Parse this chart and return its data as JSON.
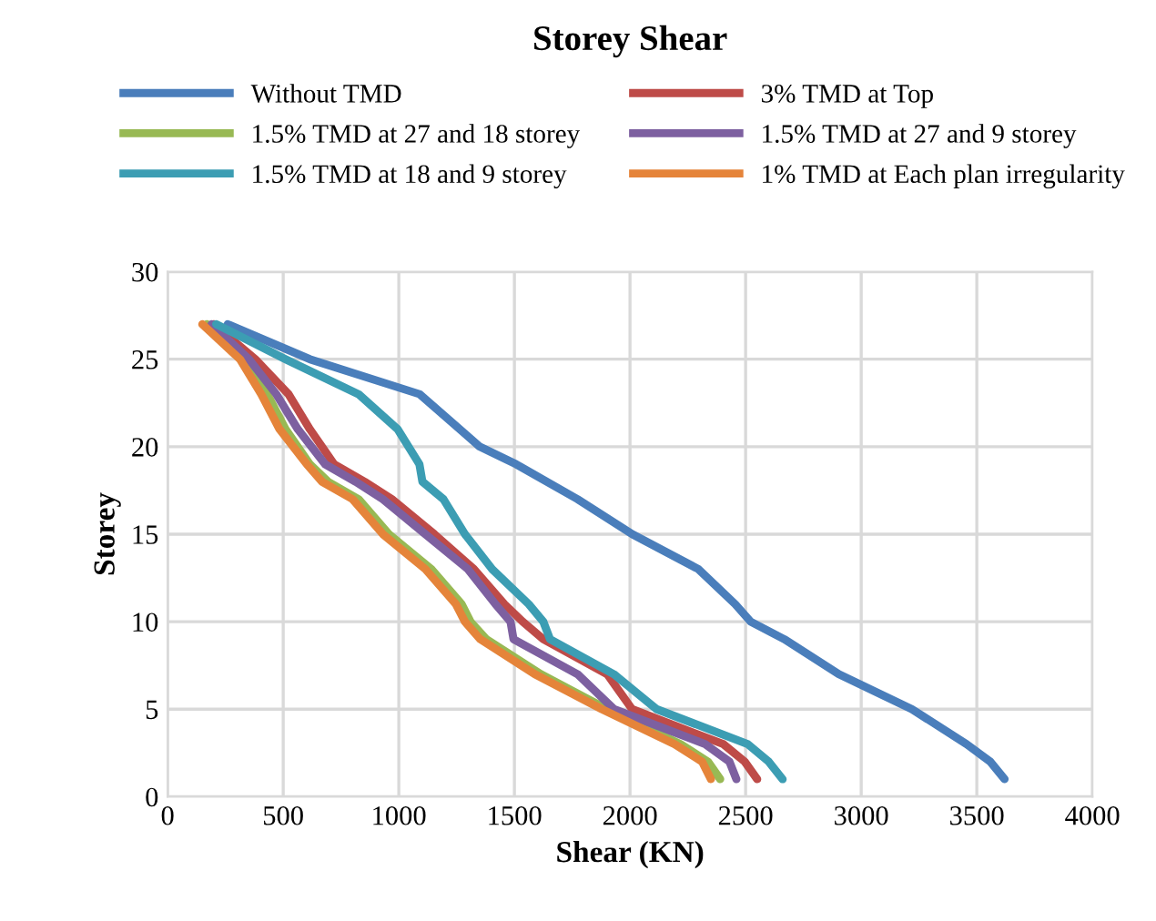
{
  "chart_data": {
    "type": "line",
    "title": "Storey Shear",
    "xlabel": "Shear (KN)",
    "ylabel": "Storey",
    "xlim": [
      0,
      4000
    ],
    "xticks": [
      0,
      500,
      1000,
      1500,
      2000,
      2500,
      3000,
      3500,
      4000
    ],
    "ylim": [
      0,
      30
    ],
    "yticks": [
      0,
      5,
      10,
      15,
      20,
      25,
      30
    ],
    "grid": true,
    "legend": "top",
    "marker": "none",
    "line_style": "solid",
    "series": [
      {
        "name": "Without TMD",
        "color": "#4a7ebb",
        "x": [
          260,
          615,
          1090,
          1350,
          1507,
          1773,
          2010,
          2296,
          2455,
          2522,
          2667,
          2903,
          3219,
          3456,
          3558,
          3620
        ],
        "values": [
          27,
          25,
          23,
          20,
          19,
          17,
          15,
          13,
          11,
          10,
          9,
          7,
          5,
          3,
          2,
          1
        ]
      },
      {
        "name": "3% TMD at Top",
        "color": "#be4b48",
        "x": [
          200,
          379,
          523,
          615,
          720,
          852,
          970,
          1154,
          1325,
          1457,
          1536,
          1625,
          1901,
          2009,
          2404,
          2496,
          2550
        ],
        "values": [
          27,
          25,
          23,
          21,
          19,
          18,
          17,
          15,
          13,
          11,
          10,
          9,
          7,
          5,
          3,
          2,
          1
        ]
      },
      {
        "name": "1.5% TMD at 27 and 18 storey",
        "color": "#98b954",
        "x": [
          170,
          326,
          431,
          510,
          615,
          694,
          826,
          957,
          1141,
          1272,
          1310,
          1378,
          1614,
          1901,
          2219,
          2337,
          2390
        ],
        "values": [
          27,
          25,
          23,
          21,
          19,
          18,
          17,
          15,
          13,
          11,
          10,
          9,
          7,
          5,
          3,
          2,
          1
        ]
      },
      {
        "name": "1.5% TMD at 27 and 9 storey",
        "color": "#7d60a0",
        "x": [
          190,
          352,
          470,
          563,
          681,
          813,
          931,
          1115,
          1299,
          1418,
          1483,
          1496,
          1773,
          1931,
          2325,
          2430,
          2460
        ],
        "values": [
          27,
          25,
          23,
          21,
          19,
          18,
          17,
          15,
          13,
          11,
          10,
          9,
          7,
          5,
          3,
          2,
          1
        ]
      },
      {
        "name": "1.5% TMD at 18 and 9 storey",
        "color": "#3c9db3",
        "x": [
          210,
          510,
          826,
          995,
          1089,
          1102,
          1193,
          1286,
          1404,
          1562,
          1625,
          1654,
          1930,
          2115,
          2509,
          2600,
          2660
        ],
        "values": [
          27,
          25,
          23,
          21,
          19,
          18,
          17,
          15,
          13,
          11,
          10,
          9,
          7,
          5,
          3,
          2,
          1
        ]
      },
      {
        "name": "1% TMD at Each plan irregularity",
        "color": "#e5843a",
        "x": [
          150,
          313,
          405,
          484,
          602,
          668,
          800,
          931,
          1115,
          1247,
          1286,
          1352,
          1588,
          1878,
          2193,
          2312,
          2350
        ],
        "values": [
          27,
          25,
          23,
          21,
          19,
          18,
          17,
          15,
          13,
          11,
          10,
          9,
          7,
          5,
          3,
          2,
          1
        ]
      }
    ]
  }
}
